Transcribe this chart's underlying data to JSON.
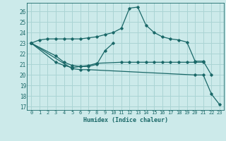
{
  "xlabel": "Humidex (Indice chaleur)",
  "background_color": "#cceaea",
  "grid_color": "#aad4d4",
  "line_color": "#1a6868",
  "xlim": [
    -0.5,
    23.5
  ],
  "ylim": [
    16.7,
    26.8
  ],
  "yticks": [
    17,
    18,
    19,
    20,
    21,
    22,
    23,
    24,
    25,
    26
  ],
  "xticks": [
    0,
    1,
    2,
    3,
    4,
    5,
    6,
    7,
    8,
    9,
    10,
    11,
    12,
    13,
    14,
    15,
    16,
    17,
    18,
    19,
    20,
    21,
    22,
    23
  ],
  "lines": [
    {
      "x": [
        0,
        1,
        2,
        3,
        4,
        5,
        6,
        7,
        8,
        9,
        10,
        11,
        12,
        13,
        14,
        15,
        16,
        17,
        18,
        19,
        20,
        21,
        22
      ],
      "y": [
        23.0,
        23.3,
        23.4,
        23.4,
        23.4,
        23.4,
        23.4,
        23.5,
        23.6,
        23.8,
        24.0,
        24.4,
        26.3,
        26.4,
        24.7,
        24.0,
        23.6,
        23.4,
        23.3,
        23.1,
        21.3,
        21.3,
        20.0
      ]
    },
    {
      "x": [
        0,
        3,
        4,
        5,
        6,
        7,
        8,
        9,
        10
      ],
      "y": [
        23.0,
        21.8,
        21.2,
        20.9,
        20.8,
        20.8,
        21.0,
        22.3,
        23.0
      ]
    },
    {
      "x": [
        0,
        3,
        4,
        5,
        6,
        7,
        8,
        11,
        12,
        13,
        14,
        15,
        16,
        17,
        18,
        19,
        20,
        21
      ],
      "y": [
        23.0,
        21.2,
        20.9,
        20.7,
        20.8,
        20.9,
        21.1,
        21.2,
        21.2,
        21.2,
        21.2,
        21.2,
        21.2,
        21.2,
        21.2,
        21.2,
        21.2,
        21.2
      ]
    },
    {
      "x": [
        0,
        5,
        6,
        7,
        20,
        21,
        22,
        23
      ],
      "y": [
        23.0,
        20.6,
        20.5,
        20.5,
        20.0,
        20.0,
        18.2,
        17.2
      ]
    }
  ]
}
